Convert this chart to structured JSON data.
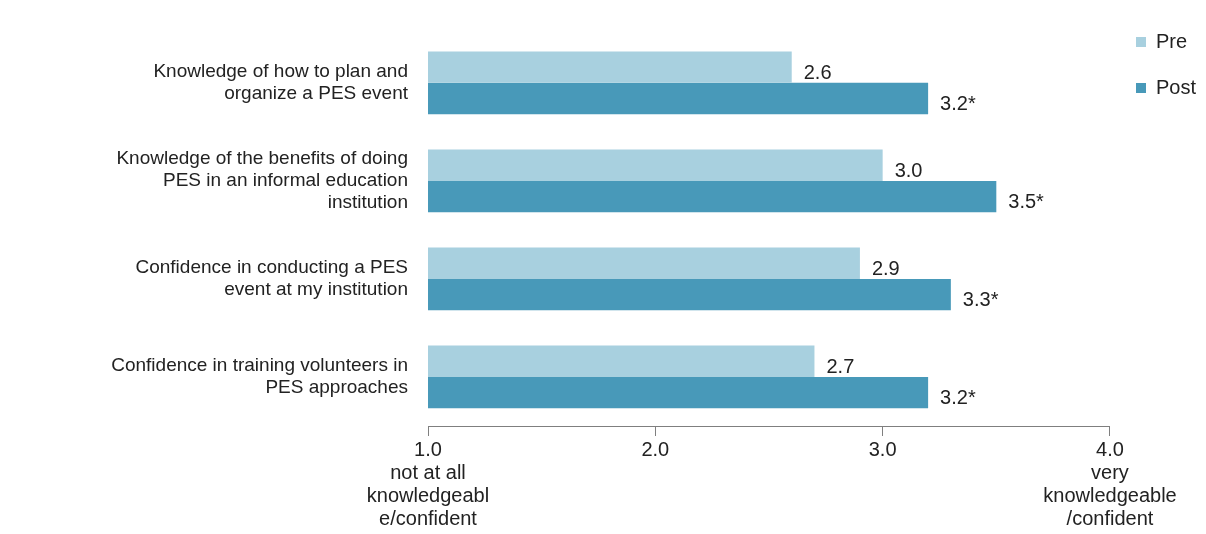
{
  "chart_data": {
    "type": "bar",
    "orientation": "horizontal",
    "categories": [
      "Knowledge of how to plan and\norganize a PES event",
      "Knowledge of the benefits of doing\nPES in an informal education\ninstitution",
      "Confidence in conducting a PES\nevent at my institution",
      "Confidence in training volunteers in\nPES approaches"
    ],
    "series": [
      {
        "name": "Pre",
        "color": "#a8d0df",
        "values": [
          2.6,
          3.0,
          2.9,
          2.7
        ],
        "value_labels": [
          "2.6",
          "3.0",
          "2.9",
          "2.7"
        ]
      },
      {
        "name": "Post",
        "color": "#4899b9",
        "values": [
          3.2,
          3.5,
          3.3,
          3.2
        ],
        "value_labels": [
          "3.2*",
          "3.5*",
          "3.3*",
          "3.2*"
        ]
      }
    ],
    "xlim": [
      1,
      4
    ],
    "xticks": [
      {
        "value": 1,
        "label": "1.0\nnot at all\nknowledgeabl\ne/confident"
      },
      {
        "value": 2,
        "label": "2.0"
      },
      {
        "value": 3,
        "label": "3.0"
      },
      {
        "value": 4,
        "label": "4.0\nvery\nknowledgeable\n/confident"
      }
    ],
    "grid": false,
    "legend": "top right"
  }
}
